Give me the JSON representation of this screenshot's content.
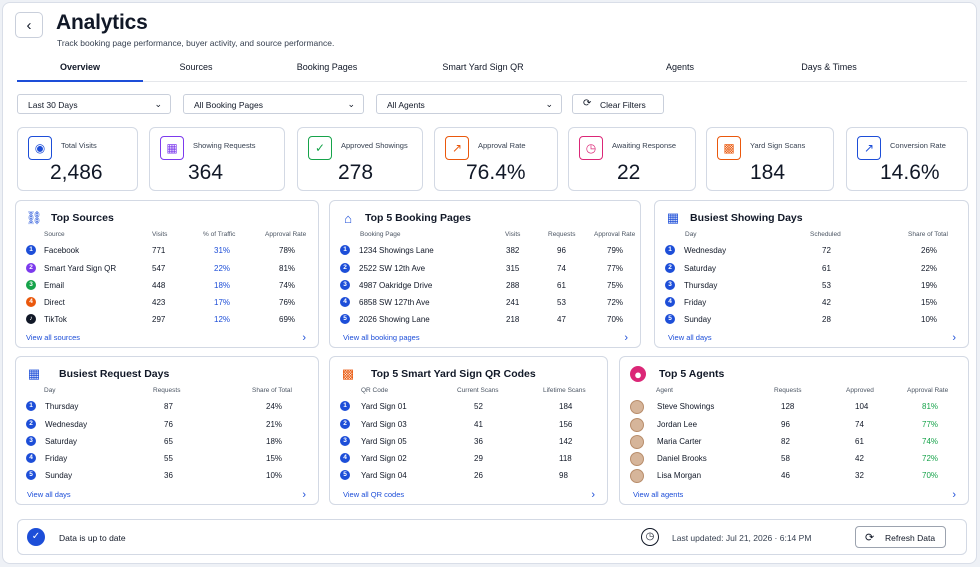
{
  "header": {
    "title": "Analytics",
    "subtitle": "Track booking page performance, buyer activity, and source performance."
  },
  "tabs": [
    "Overview",
    "Sources",
    "Booking Pages",
    "Smart Yard Sign QR",
    "Agents",
    "Days & Times"
  ],
  "filters": {
    "range": "Last 30 Days",
    "pages": "All Booking Pages",
    "agents": "All Agents",
    "clear": "Clear Filters"
  },
  "kpis": [
    {
      "label": "Total Visits",
      "value": "2,486",
      "icon": "eye-icon",
      "color": "#1d4ed8"
    },
    {
      "label": "Showing Requests",
      "value": "364",
      "icon": "calendar-icon",
      "color": "#7c3aed"
    },
    {
      "label": "Approved Showings",
      "value": "278",
      "icon": "check-circle-icon",
      "color": "#16a34a"
    },
    {
      "label": "Approval Rate",
      "value": "76.4%",
      "icon": "trend-up-icon",
      "color": "#ea580c"
    },
    {
      "label": "Awaiting Response",
      "value": "22",
      "icon": "clock-icon",
      "color": "#db2777"
    },
    {
      "label": "Yard Sign Scans",
      "value": "184",
      "icon": "qr-icon",
      "color": "#ea580c"
    },
    {
      "label": "Conversion Rate",
      "value": "14.6%",
      "icon": "trend-up-icon",
      "color": "#1d4ed8"
    }
  ],
  "top_sources": {
    "title": "Top Sources",
    "cols": [
      "Source",
      "Visits",
      "% of Traffic",
      "Approval Rate"
    ],
    "rows": [
      {
        "name": "Facebook",
        "visits": "771",
        "traffic": "31%",
        "rate": "78%",
        "color": "#1d4ed8"
      },
      {
        "name": "Smart Yard Sign QR",
        "visits": "547",
        "traffic": "22%",
        "rate": "81%",
        "color": "#7c3aed"
      },
      {
        "name": "Email",
        "visits": "448",
        "traffic": "18%",
        "rate": "74%",
        "color": "#16a34a"
      },
      {
        "name": "Direct",
        "visits": "423",
        "traffic": "17%",
        "rate": "76%",
        "color": "#ea580c"
      },
      {
        "name": "TikTok",
        "visits": "297",
        "traffic": "12%",
        "rate": "69%",
        "color": "#111827"
      }
    ],
    "footer": "View all sources"
  },
  "booking_pages": {
    "title": "Top 5 Booking Pages",
    "cols": [
      "Booking Page",
      "Visits",
      "Requests",
      "Approval Rate"
    ],
    "rows": [
      {
        "n": "1",
        "name": "1234 Showings Lane",
        "a": "382",
        "b": "96",
        "c": "79%"
      },
      {
        "n": "2",
        "name": "2522 SW 12th Ave",
        "a": "315",
        "b": "74",
        "c": "77%"
      },
      {
        "n": "3",
        "name": "4987 Oakridge Drive",
        "a": "288",
        "b": "61",
        "c": "75%"
      },
      {
        "n": "4",
        "name": "6858 SW 127th Ave",
        "a": "241",
        "b": "53",
        "c": "72%"
      },
      {
        "n": "5",
        "name": "2026 Showing Lane",
        "a": "218",
        "b": "47",
        "c": "70%"
      }
    ],
    "footer": "View all booking pages"
  },
  "showing_days": {
    "title": "Busiest Showing Days",
    "cols": [
      "Day",
      "Scheduled",
      "Share of Total"
    ],
    "rows": [
      {
        "n": "1",
        "name": "Wednesday",
        "a": "72",
        "b": "26%"
      },
      {
        "n": "2",
        "name": "Saturday",
        "a": "61",
        "b": "22%"
      },
      {
        "n": "3",
        "name": "Thursday",
        "a": "53",
        "b": "19%"
      },
      {
        "n": "4",
        "name": "Friday",
        "a": "42",
        "b": "15%"
      },
      {
        "n": "5",
        "name": "Sunday",
        "a": "28",
        "b": "10%"
      }
    ],
    "footer": "View all days"
  },
  "request_days": {
    "title": "Busiest Request Days",
    "cols": [
      "Day",
      "Requests",
      "Share of Total"
    ],
    "rows": [
      {
        "n": "1",
        "name": "Thursday",
        "a": "87",
        "b": "24%"
      },
      {
        "n": "2",
        "name": "Wednesday",
        "a": "76",
        "b": "21%"
      },
      {
        "n": "3",
        "name": "Saturday",
        "a": "65",
        "b": "18%"
      },
      {
        "n": "4",
        "name": "Friday",
        "a": "55",
        "b": "15%"
      },
      {
        "n": "5",
        "name": "Sunday",
        "a": "36",
        "b": "10%"
      }
    ],
    "footer": "View all days"
  },
  "qr_codes": {
    "title": "Top 5 Smart Yard Sign QR Codes",
    "cols": [
      "QR Code",
      "Current Scans",
      "Lifetime Scans"
    ],
    "rows": [
      {
        "n": "1",
        "name": "Yard Sign 01",
        "a": "52",
        "b": "184"
      },
      {
        "n": "2",
        "name": "Yard Sign 03",
        "a": "41",
        "b": "156"
      },
      {
        "n": "3",
        "name": "Yard Sign 05",
        "a": "36",
        "b": "142"
      },
      {
        "n": "4",
        "name": "Yard Sign 02",
        "a": "29",
        "b": "118"
      },
      {
        "n": "5",
        "name": "Yard Sign 04",
        "a": "26",
        "b": "98"
      }
    ],
    "footer": "View all QR codes"
  },
  "agents": {
    "title": "Top 5 Agents",
    "cols": [
      "Agent",
      "Requests",
      "Approved",
      "Approval Rate"
    ],
    "rows": [
      {
        "name": "Steve Showings",
        "a": "128",
        "b": "104",
        "c": "81%"
      },
      {
        "name": "Jordan Lee",
        "a": "96",
        "b": "74",
        "c": "77%"
      },
      {
        "name": "Maria Carter",
        "a": "82",
        "b": "61",
        "c": "74%"
      },
      {
        "name": "Daniel Brooks",
        "a": "58",
        "b": "42",
        "c": "72%"
      },
      {
        "name": "Lisa Morgan",
        "a": "46",
        "b": "32",
        "c": "70%"
      }
    ],
    "footer": "View all agents"
  },
  "status": {
    "text": "Data is up to date",
    "updated": "Last updated: Jul 21, 2026 · 6:14 PM",
    "refresh": "Refresh Data"
  }
}
